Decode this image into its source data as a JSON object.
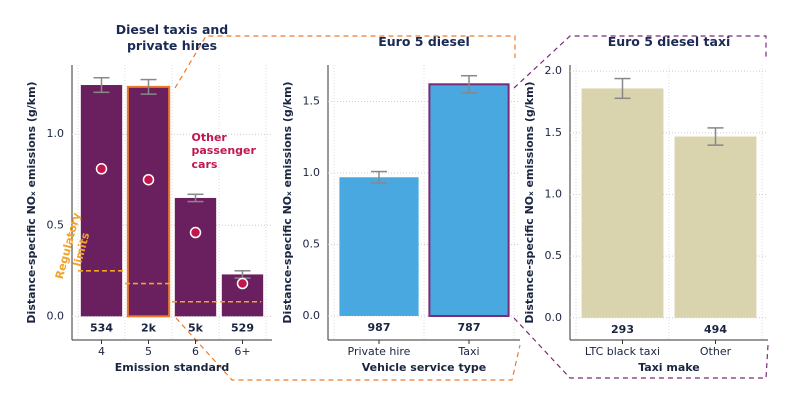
{
  "chart_data": [
    {
      "type": "bar",
      "title": "Diesel taxis and private hires",
      "x_label": "Emission standard",
      "y_label": "Distance-specific NOₓ emissions (g/km)",
      "categories": [
        "4",
        "5",
        "6",
        "6+"
      ],
      "values": [
        1.27,
        1.26,
        0.65,
        0.23
      ],
      "errors": [
        0.04,
        0.04,
        0.02,
        0.02
      ],
      "sample_sizes": [
        "534",
        "2k",
        "5k",
        "529"
      ],
      "color": "#6a1f5e",
      "highlight": 1,
      "highlight_color": "#f07a2a",
      "ylim": [
        -0.13,
        1.38
      ],
      "yticks": [
        {
          "value": 0,
          "label": "0.0"
        },
        {
          "value": 0.5,
          "label": "0.5"
        },
        {
          "value": 1,
          "label": "1.0"
        }
      ],
      "grid": true,
      "other_passenger_cars": {
        "label": "Other passenger cars",
        "color": "#c0174e",
        "values": [
          0.81,
          0.75,
          0.46,
          0.18
        ]
      },
      "regulatory_limits": {
        "label": "Regulatory limits",
        "color": "#f2a32a",
        "values": [
          0.25,
          0.18,
          0.08,
          null
        ]
      }
    },
    {
      "type": "bar",
      "title": "Euro 5 diesel",
      "x_label": "Vehicle service type",
      "y_label": "Distance-specific NOₓ emissions (g/km)",
      "categories": [
        "Private hire",
        "Taxi"
      ],
      "values": [
        0.97,
        1.62
      ],
      "errors": [
        0.04,
        0.06
      ],
      "sample_sizes": [
        "987",
        "787"
      ],
      "color": "#4aa8e0",
      "highlight": 1,
      "highlight_color": "#7a2a78",
      "ylim": [
        -0.168,
        1.755
      ],
      "yticks": [
        {
          "value": 0,
          "label": "0.0"
        },
        {
          "value": 0.5,
          "label": "0.5"
        },
        {
          "value": 1,
          "label": "1.0"
        },
        {
          "value": 1.5,
          "label": "1.5"
        }
      ],
      "grid": true
    },
    {
      "type": "bar",
      "title": "Euro 5 diesel taxi",
      "x_label": "Taxi make",
      "y_label": "Distance-specific NOₓ emissions (g/km)",
      "categories": [
        "LTC black taxi",
        "Other"
      ],
      "values": [
        1.86,
        1.47
      ],
      "errors": [
        0.08,
        0.07
      ],
      "sample_sizes": [
        "293",
        "494"
      ],
      "color": "#d9d3ae",
      "ylim": [
        -0.18,
        2.05
      ],
      "yticks": [
        {
          "value": 0,
          "label": "0.0"
        },
        {
          "value": 0.5,
          "label": "0.5"
        },
        {
          "value": 1,
          "label": "1.0"
        },
        {
          "value": 1.5,
          "label": "1.5"
        },
        {
          "value": 2,
          "label": "2.0"
        }
      ],
      "grid": true
    }
  ]
}
